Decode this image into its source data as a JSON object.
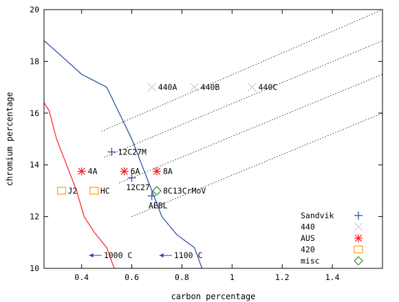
{
  "chart_data": {
    "type": "scatter",
    "xlabel": "carbon percentage",
    "ylabel": "chromium percentage",
    "xlim": [
      0.25,
      1.6
    ],
    "ylim": [
      10,
      20
    ],
    "x_ticks": [
      0.4,
      0.6,
      0.8,
      1,
      1.2,
      1.4
    ],
    "x_tick_labels": [
      "0.4",
      "0.6",
      "0.8",
      "1",
      "1.2",
      "1.4"
    ],
    "y_ticks": [
      10,
      12,
      14,
      16,
      18,
      20
    ],
    "y_tick_labels": [
      "10",
      "12",
      "14",
      "16",
      "18",
      "20"
    ],
    "grid": false,
    "legend_position": "bottom-right",
    "series": [
      {
        "name": "Sandvik",
        "marker": "plus",
        "color": "#2045a8",
        "points": [
          {
            "x": 0.52,
            "y": 14.5,
            "label": "12C27M",
            "label_pos": "right"
          },
          {
            "x": 0.6,
            "y": 13.5,
            "label": "12C27",
            "label_pos": "below"
          },
          {
            "x": 0.68,
            "y": 12.8,
            "label": "AEBL",
            "label_pos": "below"
          }
        ]
      },
      {
        "name": "440",
        "marker": "cross",
        "color": "#dcc4d8",
        "points": [
          {
            "x": 0.68,
            "y": 17.0,
            "label": "440A",
            "label_pos": "right"
          },
          {
            "x": 0.85,
            "y": 17.0,
            "label": "440B",
            "label_pos": "right"
          },
          {
            "x": 1.08,
            "y": 17.0,
            "label": "440C",
            "label_pos": "right"
          }
        ]
      },
      {
        "name": "AUS",
        "marker": "star",
        "color": "#ff1a1a",
        "points": [
          {
            "x": 0.4,
            "y": 13.75,
            "label": "4A",
            "label_pos": "right"
          },
          {
            "x": 0.57,
            "y": 13.75,
            "label": "6A",
            "label_pos": "right"
          },
          {
            "x": 0.7,
            "y": 13.75,
            "label": "8A",
            "label_pos": "right"
          }
        ]
      },
      {
        "name": "420",
        "marker": "square",
        "color": "#f0a41a",
        "points": [
          {
            "x": 0.32,
            "y": 13.0,
            "label": "J2",
            "label_pos": "right"
          },
          {
            "x": 0.45,
            "y": 13.0,
            "label": "HC",
            "label_pos": "right"
          }
        ]
      },
      {
        "name": "misc",
        "marker": "diamond",
        "color": "#2d8a2d",
        "points": [
          {
            "x": 0.7,
            "y": 13.0,
            "label": "8C13CrMoV",
            "label_pos": "right"
          }
        ]
      }
    ],
    "curves": [
      {
        "color": "#2045a8",
        "points": [
          [
            0.25,
            18.8
          ],
          [
            0.32,
            18.2
          ],
          [
            0.4,
            17.5
          ],
          [
            0.5,
            17.0
          ],
          [
            0.56,
            15.8
          ],
          [
            0.6,
            15.0
          ],
          [
            0.64,
            14.0
          ],
          [
            0.68,
            13.0
          ],
          [
            0.72,
            12.0
          ],
          [
            0.78,
            11.3
          ],
          [
            0.85,
            10.8
          ],
          [
            0.88,
            10.0
          ]
        ]
      },
      {
        "color": "#ff1a1a",
        "points": [
          [
            0.25,
            16.4
          ],
          [
            0.27,
            16.1
          ],
          [
            0.3,
            15.0
          ],
          [
            0.34,
            14.0
          ],
          [
            0.38,
            13.0
          ],
          [
            0.41,
            12.0
          ],
          [
            0.45,
            11.4
          ],
          [
            0.5,
            10.8
          ],
          [
            0.53,
            10.0
          ]
        ]
      }
    ],
    "dotted_lines": [
      {
        "points": [
          [
            0.48,
            15.3
          ],
          [
            1.6,
            20.0
          ]
        ]
      },
      {
        "points": [
          [
            0.49,
            14.3
          ],
          [
            1.6,
            18.8
          ]
        ]
      },
      {
        "points": [
          [
            0.55,
            13.3
          ],
          [
            1.6,
            17.5
          ]
        ]
      },
      {
        "points": [
          [
            0.6,
            12.0
          ],
          [
            1.6,
            16.0
          ]
        ]
      }
    ],
    "annotations": [
      {
        "text": "1000 C",
        "arrow_from": [
          0.48,
          10.5
        ],
        "arrow_to": [
          0.43,
          10.5
        ],
        "color": "#2045a8"
      },
      {
        "text": "1100 C",
        "arrow_from": [
          0.76,
          10.5
        ],
        "arrow_to": [
          0.71,
          10.5
        ],
        "color": "#2045a8"
      }
    ]
  }
}
